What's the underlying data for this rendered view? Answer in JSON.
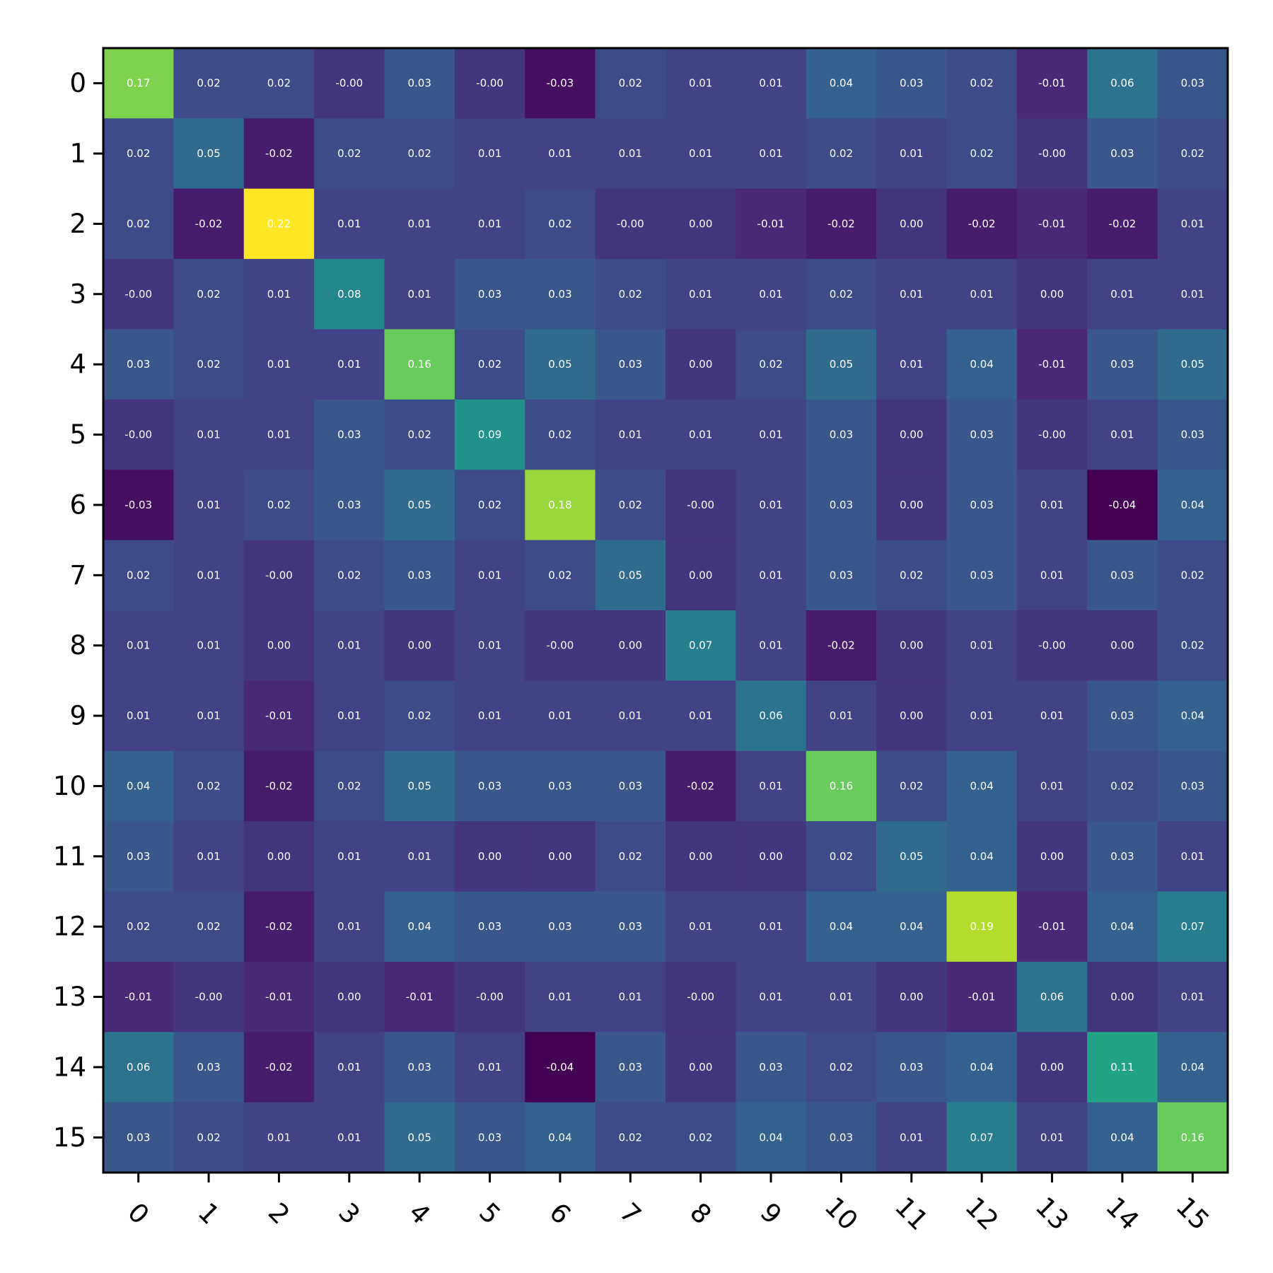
{
  "chart_data": {
    "type": "heatmap",
    "colormap": "viridis",
    "value_format": "2 decimals",
    "color_range": [
      -0.04,
      0.22
    ],
    "x_tick_labels": [
      "0",
      "1",
      "2",
      "3",
      "4",
      "5",
      "6",
      "7",
      "8",
      "9",
      "10",
      "11",
      "12",
      "13",
      "14",
      "15"
    ],
    "y_tick_labels": [
      "0",
      "1",
      "2",
      "3",
      "4",
      "5",
      "6",
      "7",
      "8",
      "9",
      "10",
      "11",
      "12",
      "13",
      "14",
      "15"
    ],
    "x_tick_rotation_deg": 45,
    "values": [
      [
        0.17,
        0.02,
        0.02,
        -0.0,
        0.03,
        -0.0,
        -0.03,
        0.02,
        0.01,
        0.01,
        0.04,
        0.03,
        0.02,
        -0.01,
        0.06,
        0.03
      ],
      [
        0.02,
        0.05,
        -0.02,
        0.02,
        0.02,
        0.01,
        0.01,
        0.01,
        0.01,
        0.01,
        0.02,
        0.01,
        0.02,
        -0.0,
        0.03,
        0.02
      ],
      [
        0.02,
        -0.02,
        0.22,
        0.01,
        0.01,
        0.01,
        0.02,
        -0.0,
        0.0,
        -0.01,
        -0.02,
        0.0,
        -0.02,
        -0.01,
        -0.02,
        0.01
      ],
      [
        -0.0,
        0.02,
        0.01,
        0.08,
        0.01,
        0.03,
        0.03,
        0.02,
        0.01,
        0.01,
        0.02,
        0.01,
        0.01,
        0.0,
        0.01,
        0.01
      ],
      [
        0.03,
        0.02,
        0.01,
        0.01,
        0.16,
        0.02,
        0.05,
        0.03,
        0.0,
        0.02,
        0.05,
        0.01,
        0.04,
        -0.01,
        0.03,
        0.05
      ],
      [
        -0.0,
        0.01,
        0.01,
        0.03,
        0.02,
        0.09,
        0.02,
        0.01,
        0.01,
        0.01,
        0.03,
        0.0,
        0.03,
        -0.0,
        0.01,
        0.03
      ],
      [
        -0.03,
        0.01,
        0.02,
        0.03,
        0.05,
        0.02,
        0.18,
        0.02,
        -0.0,
        0.01,
        0.03,
        0.0,
        0.03,
        0.01,
        -0.04,
        0.04
      ],
      [
        0.02,
        0.01,
        -0.0,
        0.02,
        0.03,
        0.01,
        0.02,
        0.05,
        0.0,
        0.01,
        0.03,
        0.02,
        0.03,
        0.01,
        0.03,
        0.02
      ],
      [
        0.01,
        0.01,
        0.0,
        0.01,
        0.0,
        0.01,
        -0.0,
        0.0,
        0.07,
        0.01,
        -0.02,
        0.0,
        0.01,
        -0.0,
        0.0,
        0.02
      ],
      [
        0.01,
        0.01,
        -0.01,
        0.01,
        0.02,
        0.01,
        0.01,
        0.01,
        0.01,
        0.06,
        0.01,
        0.0,
        0.01,
        0.01,
        0.03,
        0.04
      ],
      [
        0.04,
        0.02,
        -0.02,
        0.02,
        0.05,
        0.03,
        0.03,
        0.03,
        -0.02,
        0.01,
        0.16,
        0.02,
        0.04,
        0.01,
        0.02,
        0.03
      ],
      [
        0.03,
        0.01,
        0.0,
        0.01,
        0.01,
        0.0,
        0.0,
        0.02,
        0.0,
        0.0,
        0.02,
        0.05,
        0.04,
        0.0,
        0.03,
        0.01
      ],
      [
        0.02,
        0.02,
        -0.02,
        0.01,
        0.04,
        0.03,
        0.03,
        0.03,
        0.01,
        0.01,
        0.04,
        0.04,
        0.19,
        -0.01,
        0.04,
        0.07
      ],
      [
        -0.01,
        -0.0,
        -0.01,
        0.0,
        -0.01,
        -0.0,
        0.01,
        0.01,
        -0.0,
        0.01,
        0.01,
        0.0,
        -0.01,
        0.06,
        0.0,
        0.01
      ],
      [
        0.06,
        0.03,
        -0.02,
        0.01,
        0.03,
        0.01,
        -0.04,
        0.03,
        0.0,
        0.03,
        0.02,
        0.03,
        0.04,
        0.0,
        0.11,
        0.04
      ],
      [
        0.03,
        0.02,
        0.01,
        0.01,
        0.05,
        0.03,
        0.04,
        0.02,
        0.02,
        0.04,
        0.03,
        0.01,
        0.07,
        0.01,
        0.04,
        0.16
      ]
    ]
  }
}
